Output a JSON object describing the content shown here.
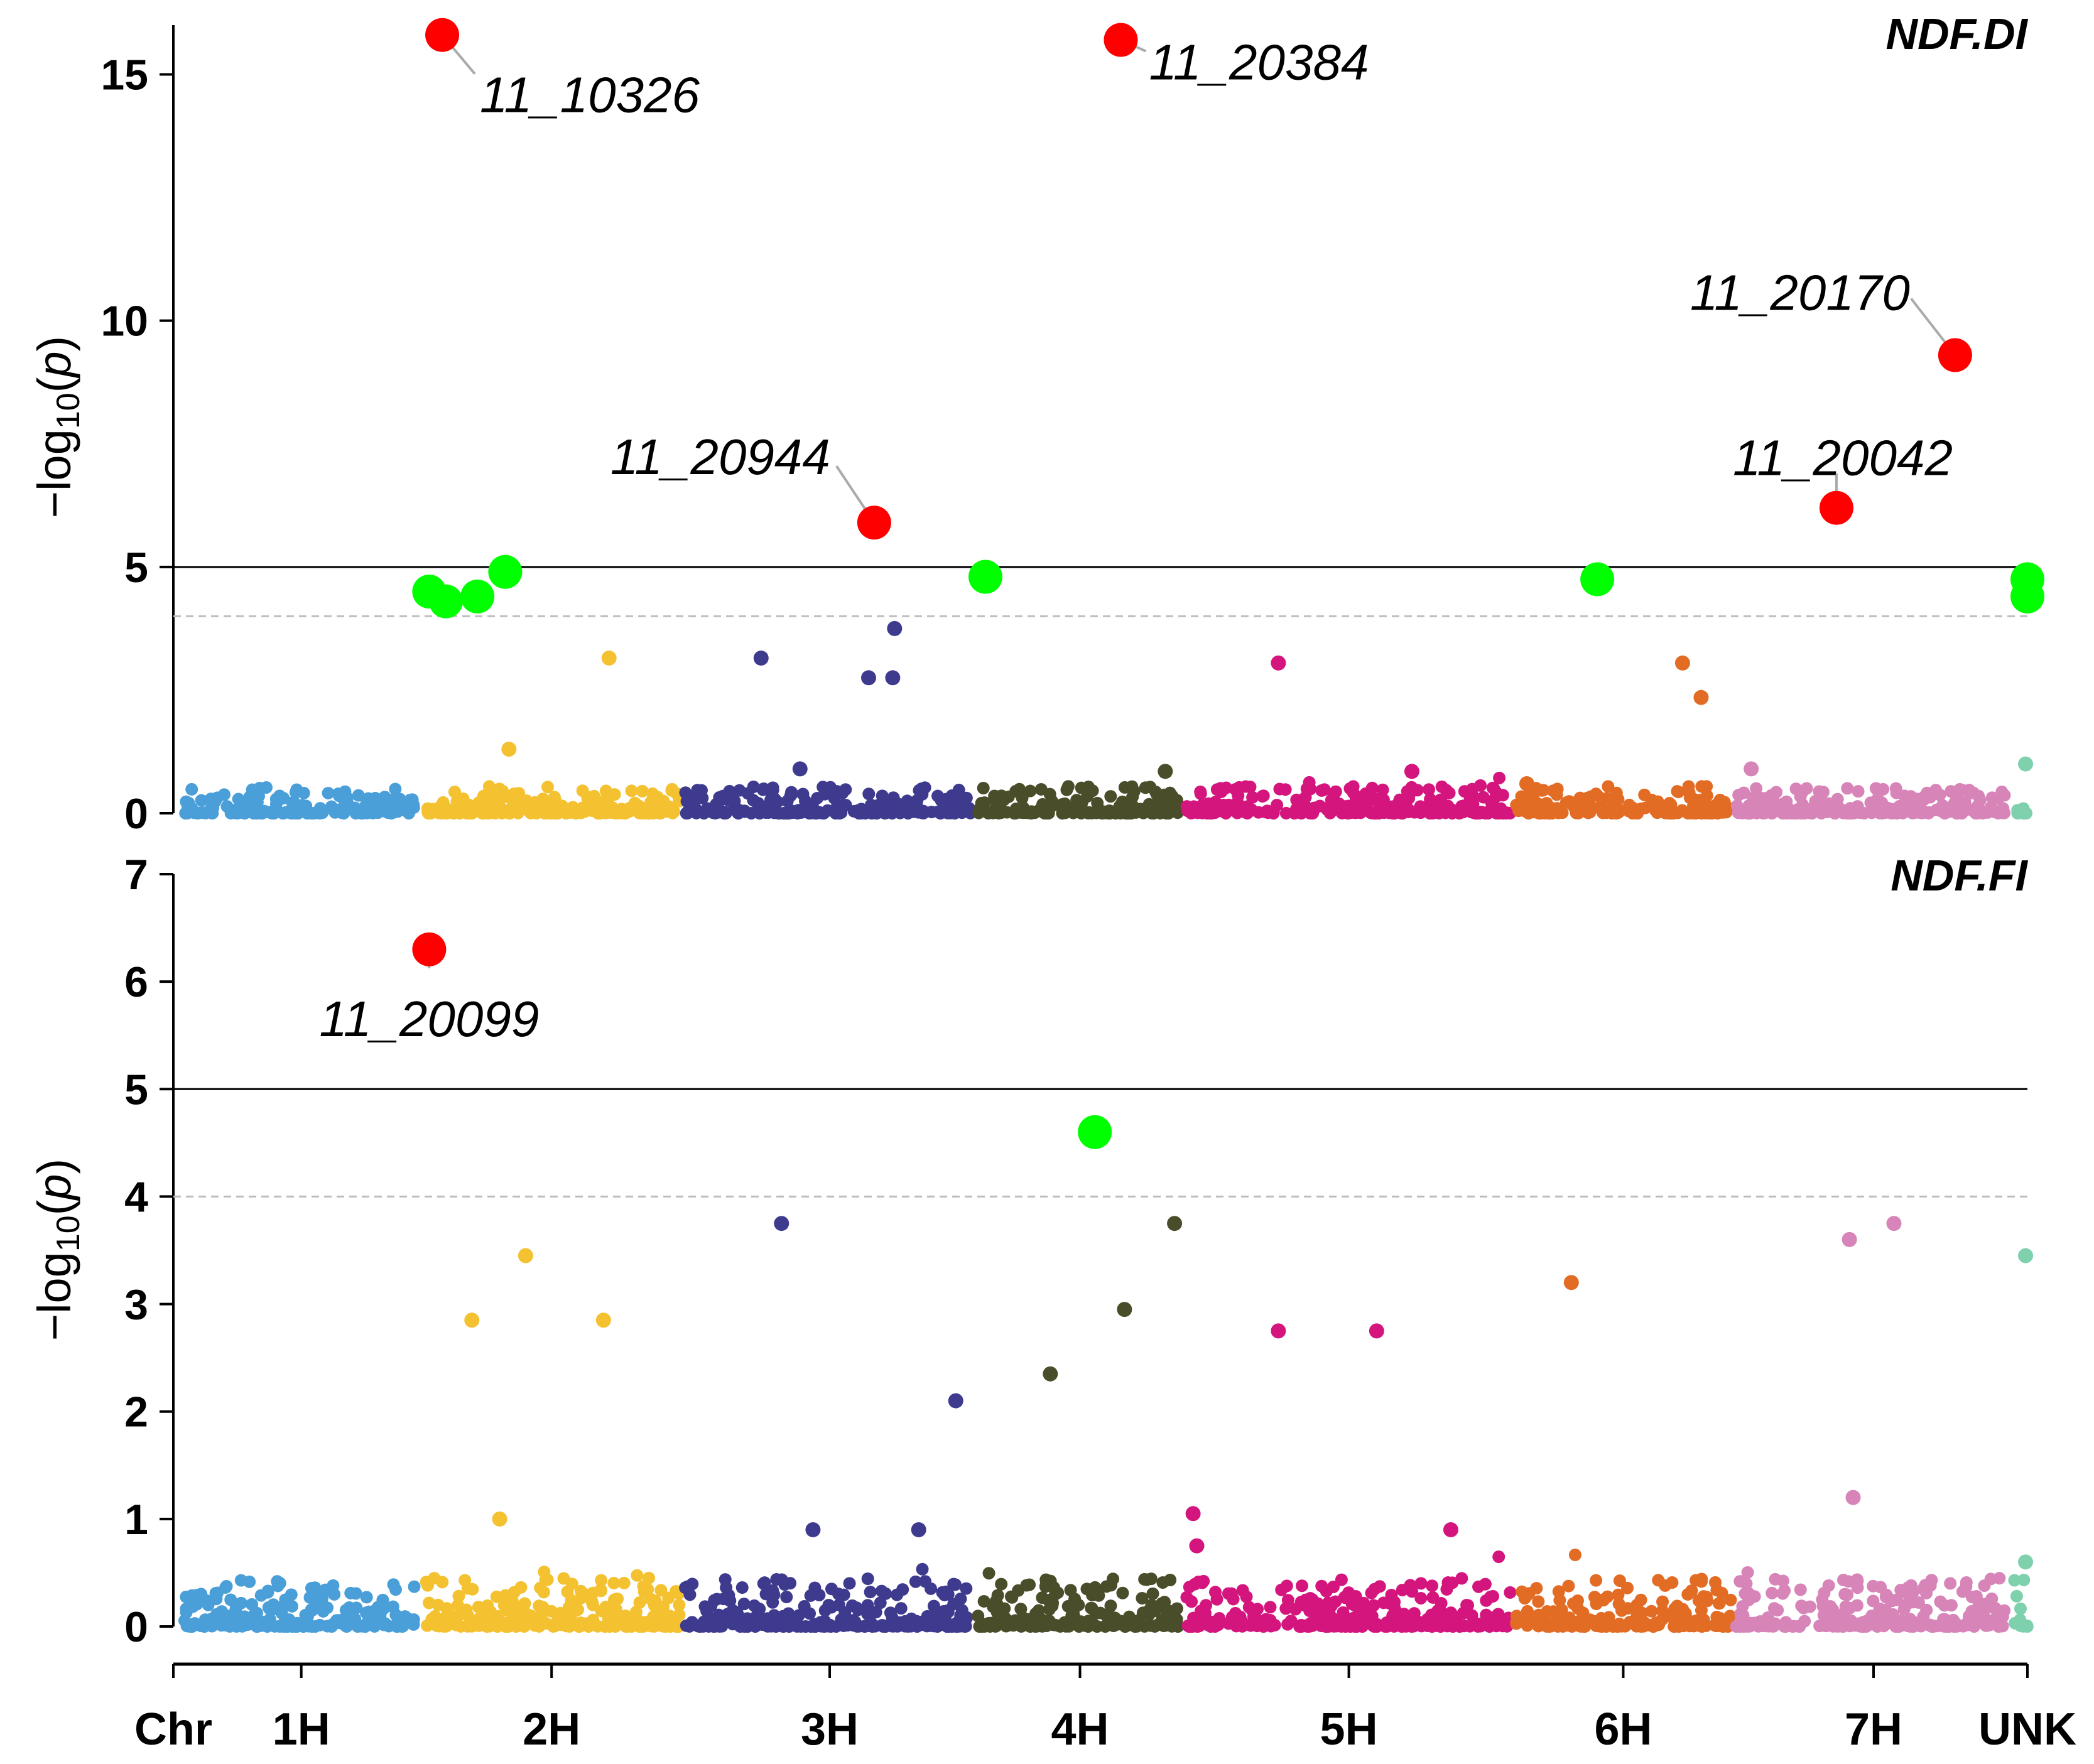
{
  "chart_data": {
    "type": "scatter",
    "subtype": "manhattan",
    "xlabel": "Chr",
    "x_units": "cumulative genomic position (0 = start of 1H, 100 = end of UNK)",
    "chromosomes": [
      {
        "label": "1H",
        "start": 0.6,
        "end": 13.0,
        "tick": 6.9,
        "color": "#4a9fd9"
      },
      {
        "label": "2H",
        "start": 13.6,
        "end": 27.3,
        "tick": 20.4,
        "color": "#f4c131"
      },
      {
        "label": "3H",
        "start": 27.6,
        "end": 43.0,
        "tick": 35.4,
        "color": "#3e3b8f"
      },
      {
        "label": "4H",
        "start": 43.4,
        "end": 54.3,
        "tick": 48.9,
        "color": "#4a4d2a"
      },
      {
        "label": "5H",
        "start": 54.6,
        "end": 72.1,
        "tick": 63.4,
        "color": "#d4157d"
      },
      {
        "label": "6H",
        "start": 72.4,
        "end": 84.0,
        "tick": 78.2,
        "color": "#e36c25"
      },
      {
        "label": "7H",
        "start": 84.3,
        "end": 98.8,
        "tick": 91.7,
        "color": "#d784b8"
      },
      {
        "label": "UNK",
        "start": 99.3,
        "end": 100.0,
        "tick": 100.0,
        "color": "#7fd1ae"
      }
    ],
    "significant_color": "#ff0000",
    "suggestive_color": "#00ff00",
    "panels": [
      {
        "title": "NDF.DI",
        "ylabel": "-log10(p)",
        "ylim": [
          0,
          16
        ],
        "yticks": [
          0,
          5,
          10,
          15
        ],
        "threshold_significant": 5,
        "threshold_suggestive": 4,
        "significant": [
          {
            "x": 14.5,
            "y": 15.8,
            "label": "11_10326"
          },
          {
            "x": 51.1,
            "y": 15.7,
            "label": "11_20384"
          },
          {
            "x": 96.1,
            "y": 9.3,
            "label": "11_20170"
          },
          {
            "x": 37.8,
            "y": 5.9,
            "label": "11_20944"
          },
          {
            "x": 89.7,
            "y": 6.2,
            "label": "11_20042"
          }
        ],
        "suggestive": [
          {
            "x": 13.8,
            "y": 4.5
          },
          {
            "x": 14.7,
            "y": 4.3
          },
          {
            "x": 16.4,
            "y": 4.4
          },
          {
            "x": 17.9,
            "y": 4.9
          },
          {
            "x": 43.8,
            "y": 4.8
          },
          {
            "x": 76.8,
            "y": 4.75
          },
          {
            "x": 100.0,
            "y": 4.75
          },
          {
            "x": 100.0,
            "y": 4.4
          }
        ],
        "notable_points": [
          {
            "x": 23.5,
            "y": 3.15
          },
          {
            "x": 31.7,
            "y": 3.15
          },
          {
            "x": 37.5,
            "y": 2.75
          },
          {
            "x": 38.8,
            "y": 2.75
          },
          {
            "x": 38.9,
            "y": 3.75
          },
          {
            "x": 59.6,
            "y": 3.05
          },
          {
            "x": 81.4,
            "y": 3.05
          },
          {
            "x": 82.4,
            "y": 2.35
          },
          {
            "x": 18.1,
            "y": 1.3
          },
          {
            "x": 33.8,
            "y": 0.9
          },
          {
            "x": 53.5,
            "y": 0.85
          },
          {
            "x": 66.8,
            "y": 0.85
          },
          {
            "x": 73.0,
            "y": 0.6
          },
          {
            "x": 85.1,
            "y": 0.9
          },
          {
            "x": 99.9,
            "y": 1.0
          }
        ]
      },
      {
        "title": "NDF.FI",
        "ylabel": "-log10(p)",
        "ylim": [
          0,
          7
        ],
        "yticks": [
          0,
          1,
          2,
          3,
          4,
          5,
          6,
          7
        ],
        "threshold_significant": 5,
        "threshold_suggestive": 4,
        "significant": [
          {
            "x": 13.8,
            "y": 6.3,
            "label": "11_20099"
          }
        ],
        "suggestive": [
          {
            "x": 49.7,
            "y": 4.6
          }
        ],
        "notable_points": [
          {
            "x": 16.1,
            "y": 2.85
          },
          {
            "x": 19.0,
            "y": 3.45
          },
          {
            "x": 23.2,
            "y": 2.85
          },
          {
            "x": 17.6,
            "y": 1.0
          },
          {
            "x": 32.8,
            "y": 3.75
          },
          {
            "x": 34.5,
            "y": 0.9
          },
          {
            "x": 40.2,
            "y": 0.9
          },
          {
            "x": 42.2,
            "y": 2.1
          },
          {
            "x": 47.3,
            "y": 2.35
          },
          {
            "x": 51.3,
            "y": 2.95
          },
          {
            "x": 54.0,
            "y": 3.75
          },
          {
            "x": 55.0,
            "y": 1.05
          },
          {
            "x": 55.2,
            "y": 0.75
          },
          {
            "x": 59.6,
            "y": 2.75
          },
          {
            "x": 64.9,
            "y": 2.75
          },
          {
            "x": 68.9,
            "y": 0.9
          },
          {
            "x": 75.4,
            "y": 3.2
          },
          {
            "x": 90.4,
            "y": 3.6
          },
          {
            "x": 92.8,
            "y": 3.75
          },
          {
            "x": 90.6,
            "y": 1.2
          },
          {
            "x": 99.9,
            "y": 3.45
          },
          {
            "x": 99.9,
            "y": 0.6
          }
        ]
      }
    ]
  }
}
